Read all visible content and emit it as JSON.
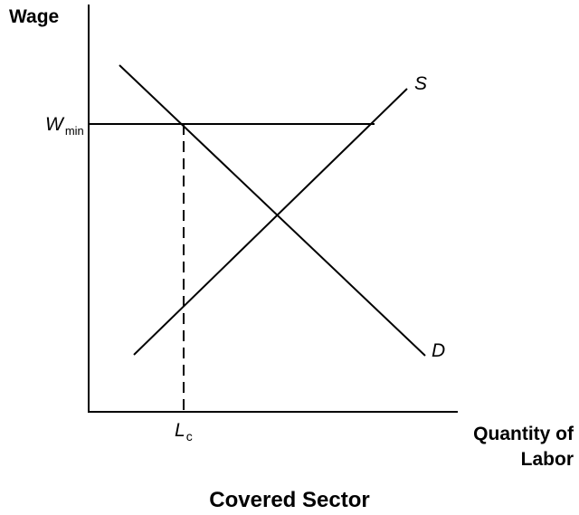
{
  "axes": {
    "y_label": "Wage",
    "x_label_lines": [
      "Quantity of",
      "Labor"
    ]
  },
  "curves": [
    {
      "label": "S"
    },
    {
      "label": "D"
    }
  ],
  "wage_floor": {
    "symbol": "W",
    "subscript": "min"
  },
  "employment": {
    "symbol": "L",
    "subscript": "c"
  },
  "caption": "Covered Sector"
}
